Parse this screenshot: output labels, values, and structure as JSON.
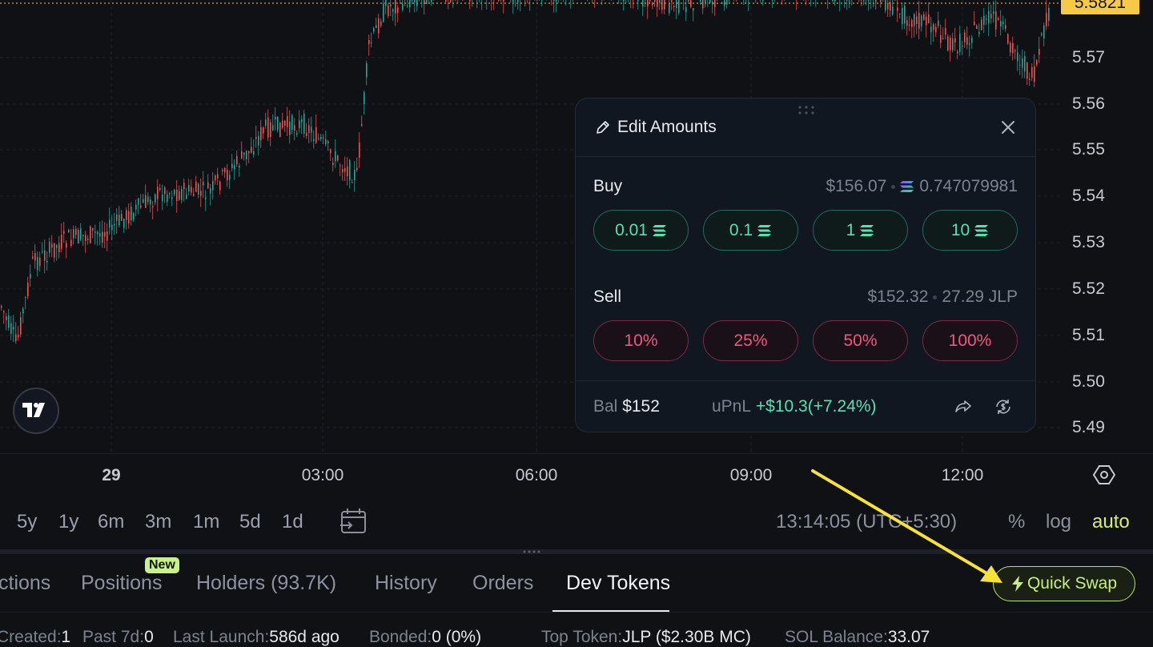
{
  "price_axis": {
    "current_price": "5.5821",
    "ticks": [
      "5.58",
      "5.57",
      "5.56",
      "5.55",
      "5.54",
      "5.53",
      "5.52",
      "5.51",
      "5.50",
      "5.49"
    ]
  },
  "time_axis": {
    "ticks": [
      "29",
      "03:00",
      "06:00",
      "09:00",
      "12:00"
    ]
  },
  "range_bar": {
    "ranges": [
      "5y",
      "1y",
      "6m",
      "3m",
      "1m",
      "5d",
      "1d"
    ],
    "clock": "13:14:05 (UTC+5:30)",
    "percent": "%",
    "log": "log",
    "auto": "auto",
    "auto_color": "#d6ef6a"
  },
  "tabs": {
    "items": [
      "ctions",
      "Positions",
      "Holders (93.7K)",
      "History",
      "Orders",
      "Dev Tokens"
    ],
    "active": "Dev Tokens",
    "new_badge": "New"
  },
  "quick_swap": {
    "label": "Quick Swap",
    "icon": "lightning-icon"
  },
  "stats": [
    {
      "label": "Created:",
      "value": "1"
    },
    {
      "label": "Past 7d:",
      "value": "0"
    },
    {
      "label": "Last Launch:",
      "value": "586d ago"
    },
    {
      "label": "Bonded:",
      "value": "0 (0%)"
    },
    {
      "label": "Top Token:",
      "value": "JLP ($2.30B MC)"
    },
    {
      "label": "SOL Balance:",
      "value": "33.07"
    }
  ],
  "popup": {
    "title": "Edit Amounts",
    "buy": {
      "label": "Buy",
      "usd": "$156.07",
      "sol": "0.747079981",
      "amounts": [
        "0.01",
        "0.1",
        "1",
        "10"
      ]
    },
    "sell": {
      "label": "Sell",
      "usd": "$152.32",
      "tokens": "27.29 JLP",
      "percents": [
        "10%",
        "25%",
        "50%",
        "100%"
      ]
    },
    "footer": {
      "bal_label": "Bal",
      "bal_value": "$152",
      "upnl_label": "uPnL",
      "upnl_value": "+$10.3",
      "upnl_pct": "(+7.24%)"
    }
  },
  "colors": {
    "up": "#26a69a",
    "down": "#ef5350",
    "accent": "#c6f07a",
    "buy": "#58e0b0",
    "sell": "#f0567e",
    "annotation_arrow": "#f5e23a"
  }
}
